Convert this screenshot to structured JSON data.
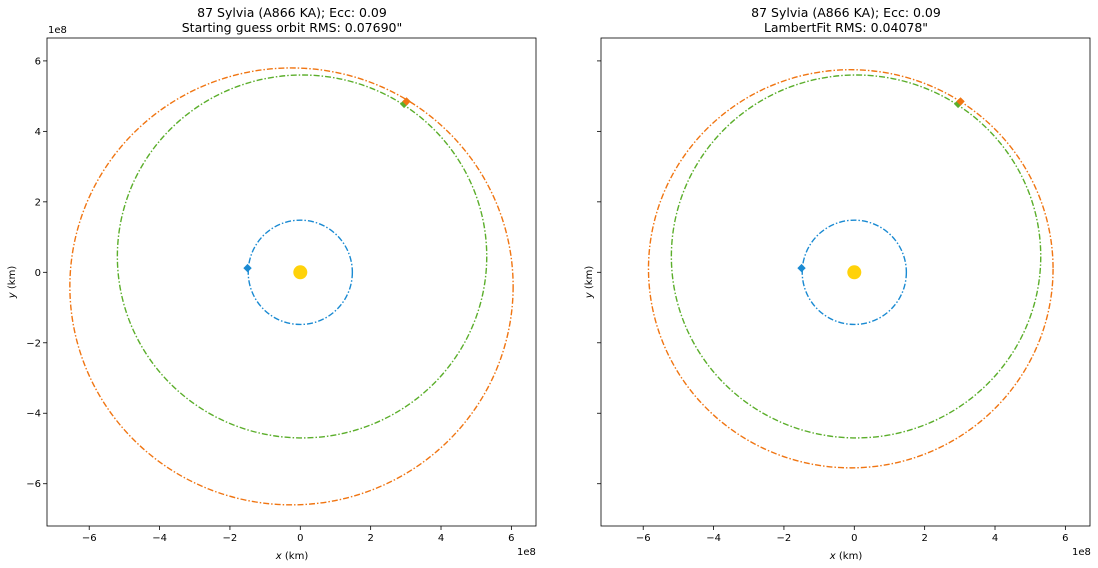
{
  "chart_data": [
    {
      "type": "scatter",
      "title_line1": "87 Sylvia (A866 KA); Ecc: 0.09",
      "title_line2": "Starting guess orbit RMS: 0.07690\"",
      "xlabel_var": "x",
      "xlabel_unit": " (km)",
      "ylabel_var": "y",
      "ylabel_unit": " (km)",
      "x_offset_text": "1e8",
      "y_offset_text": "1e8",
      "xlim": [
        -7.2,
        6.7
      ],
      "ylim": [
        -7.2,
        6.65
      ],
      "xticks": [
        -6,
        -4,
        -2,
        0,
        2,
        4,
        6
      ],
      "yticks": [
        -6,
        -4,
        -2,
        0,
        2,
        4,
        6
      ],
      "xtick_labels": [
        "−6",
        "−4",
        "−2",
        "0",
        "2",
        "4",
        "6"
      ],
      "ytick_labels": [
        "−6",
        "−4",
        "−2",
        "0",
        "2",
        "4",
        "6"
      ],
      "show_ytick_labels": true,
      "grid": false,
      "sun": {
        "x": 0,
        "y": 0,
        "color": "#FFD20A"
      },
      "orbits": [
        {
          "color": "#1A8AD2",
          "cx": 0,
          "cy": 0,
          "rx": 1.48,
          "ry": 1.48
        },
        {
          "color": "#5BAE2B",
          "cx": 0.05,
          "cy": 0.45,
          "rx": 5.25,
          "ry": 5.15
        },
        {
          "color": "#F07512",
          "cx": -0.25,
          "cy": -0.4,
          "rx": 6.3,
          "ry": 6.2
        }
      ],
      "markers": [
        {
          "color": "#1A8AD2",
          "x": -1.5,
          "y": 0.12
        },
        {
          "color": "#5BAE2B",
          "x": 2.95,
          "y": 4.78
        },
        {
          "color": "#F07512",
          "x": 3.02,
          "y": 4.85
        }
      ]
    },
    {
      "type": "scatter",
      "title_line1": "87 Sylvia (A866 KA); Ecc: 0.09",
      "title_line2": "LambertFit RMS: 0.04078\"",
      "xlabel_var": "x",
      "xlabel_unit": " (km)",
      "ylabel_var": "y",
      "ylabel_unit": " (km)",
      "x_offset_text": "1e8",
      "y_offset_text": "",
      "xlim": [
        -7.2,
        6.7
      ],
      "ylim": [
        -7.2,
        6.65
      ],
      "xticks": [
        -6,
        -4,
        -2,
        0,
        2,
        4,
        6
      ],
      "yticks": [
        -6,
        -4,
        -2,
        0,
        2,
        4,
        6
      ],
      "xtick_labels": [
        "−6",
        "−4",
        "−2",
        "0",
        "2",
        "4",
        "6"
      ],
      "ytick_labels": [],
      "show_ytick_labels": false,
      "grid": false,
      "sun": {
        "x": 0,
        "y": 0,
        "color": "#FFD20A"
      },
      "orbits": [
        {
          "color": "#1A8AD2",
          "cx": 0,
          "cy": 0,
          "rx": 1.48,
          "ry": 1.48
        },
        {
          "color": "#5BAE2B",
          "cx": 0.05,
          "cy": 0.45,
          "rx": 5.25,
          "ry": 5.15
        },
        {
          "color": "#F07512",
          "cx": -0.1,
          "cy": 0.1,
          "rx": 5.75,
          "ry": 5.65
        }
      ],
      "markers": [
        {
          "color": "#1A8AD2",
          "x": -1.5,
          "y": 0.12
        },
        {
          "color": "#5BAE2B",
          "x": 2.95,
          "y": 4.78
        },
        {
          "color": "#F07512",
          "x": 3.02,
          "y": 4.85
        }
      ]
    }
  ]
}
